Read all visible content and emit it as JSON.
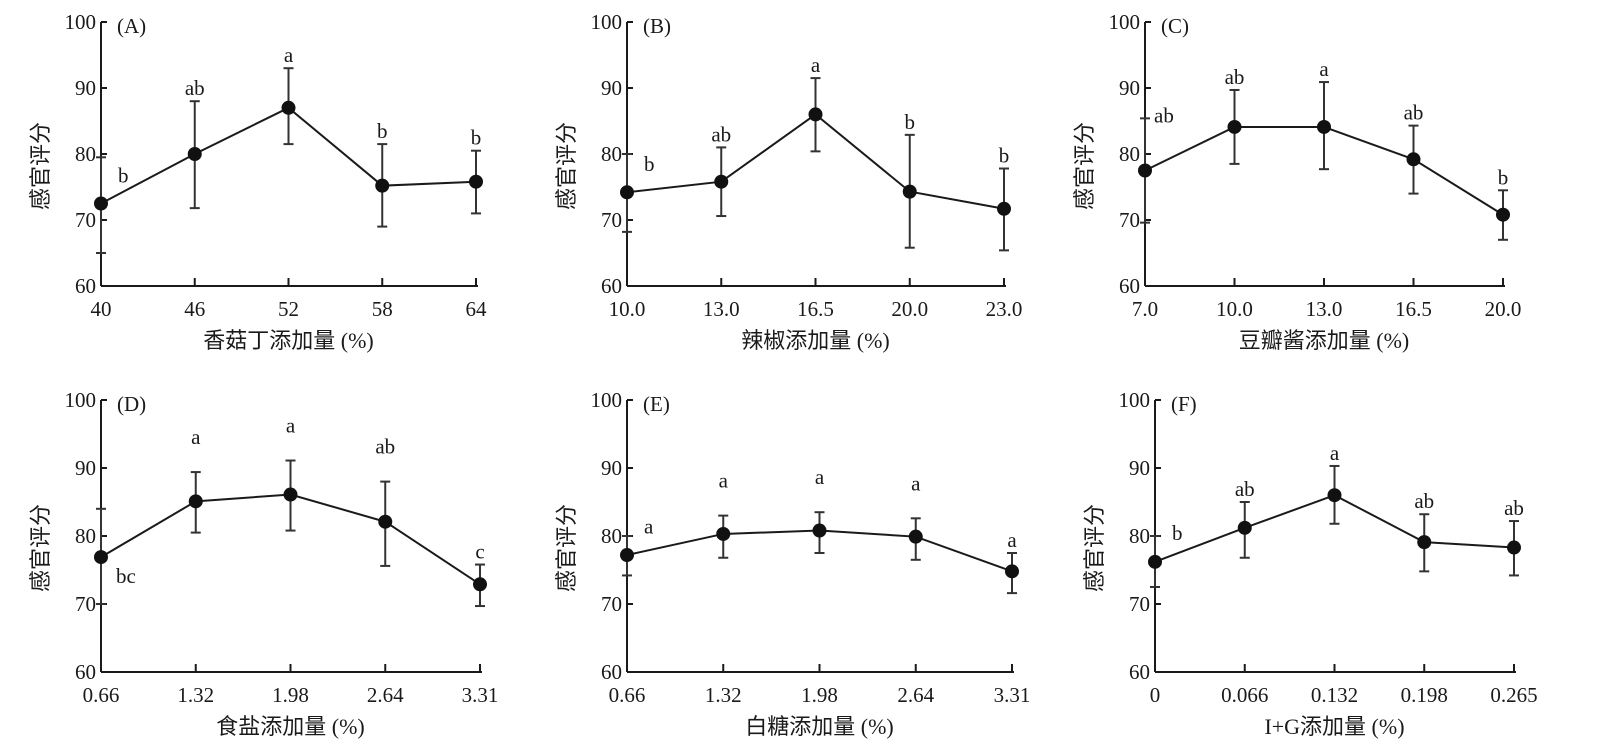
{
  "chart_data": [
    {
      "type": "line",
      "panel": "(A)",
      "xlabel": "香菇丁添加量 (%)",
      "ylabel": "感官评分",
      "categories": [
        "40",
        "46",
        "52",
        "58",
        "64"
      ],
      "yticks": [
        "60",
        "70",
        "80",
        "90",
        "100"
      ],
      "ylim": [
        60,
        100
      ],
      "values": [
        72.5,
        80.0,
        87.0,
        75.2,
        75.8
      ],
      "err_upper": [
        79.5,
        88.0,
        93.0,
        81.5,
        80.5
      ],
      "err_lower": [
        65.0,
        71.8,
        81.5,
        69.0,
        71.0
      ],
      "sig": [
        "b",
        "ab",
        "a",
        "b",
        "b"
      ]
    },
    {
      "type": "line",
      "panel": "(B)",
      "xlabel": "辣椒添加量 (%)",
      "ylabel": "感官评分",
      "categories": [
        "10.0",
        "13.0",
        "16.5",
        "20.0",
        "23.0"
      ],
      "yticks": [
        "60",
        "70",
        "80",
        "90",
        "100"
      ],
      "ylim": [
        60,
        100
      ],
      "values": [
        74.2,
        75.8,
        86.0,
        74.3,
        71.7
      ],
      "err_upper": [
        80.0,
        81.0,
        91.5,
        82.9,
        77.8
      ],
      "err_lower": [
        68.2,
        70.6,
        80.4,
        65.8,
        65.4
      ],
      "sig": [
        "b",
        "ab",
        "a",
        "b",
        "b"
      ]
    },
    {
      "type": "line",
      "panel": "(C)",
      "xlabel": "豆瓣酱添加量 (%)",
      "ylabel": "感官评分",
      "categories": [
        "7.0",
        "10.0",
        "13.0",
        "16.5",
        "20.0"
      ],
      "yticks": [
        "60",
        "70",
        "80",
        "90",
        "100"
      ],
      "ylim": [
        60,
        100
      ],
      "values": [
        77.5,
        84.1,
        84.1,
        79.2,
        70.8
      ],
      "err_upper": [
        85.4,
        89.7,
        90.9,
        84.3,
        74.5
      ],
      "err_lower": [
        69.6,
        78.5,
        77.7,
        74.0,
        67.0
      ],
      "sig": [
        "ab",
        "ab",
        "a",
        "ab",
        "b"
      ]
    },
    {
      "type": "line",
      "panel": "(D)",
      "xlabel": "食盐添加量 (%)",
      "ylabel": "感官评分",
      "categories": [
        "0.66",
        "1.32",
        "1.98",
        "2.64",
        "3.31"
      ],
      "yticks": [
        "60",
        "70",
        "80",
        "90",
        "100"
      ],
      "ylim": [
        60,
        100
      ],
      "values": [
        76.9,
        85.1,
        86.1,
        82.1,
        72.9
      ],
      "err_upper": [
        84.0,
        89.4,
        91.1,
        88.0,
        75.8
      ],
      "err_lower": [
        70.0,
        80.5,
        80.8,
        75.6,
        69.7
      ],
      "sig": [
        "bc",
        "a",
        "a",
        "ab",
        "c"
      ]
    },
    {
      "type": "line",
      "panel": "(E)",
      "xlabel": "白糖添加量 (%)",
      "ylabel": "感官评分",
      "categories": [
        "0.66",
        "1.32",
        "1.98",
        "2.64",
        "3.31"
      ],
      "yticks": [
        "60",
        "70",
        "80",
        "90",
        "100"
      ],
      "ylim": [
        60,
        100
      ],
      "values": [
        77.2,
        80.3,
        80.8,
        79.9,
        74.8
      ],
      "err_upper": [
        80.0,
        83.0,
        83.5,
        82.6,
        77.5
      ],
      "err_lower": [
        74.2,
        76.8,
        77.5,
        76.5,
        71.6
      ],
      "sig": [
        "a",
        "a",
        "a",
        "a",
        "a"
      ]
    },
    {
      "type": "line",
      "panel": "(F)",
      "xlabel": "I+G添加量 (%)",
      "ylabel": "感官评分",
      "categories": [
        "0",
        "0.066",
        "0.132",
        "0.198",
        "0.265"
      ],
      "yticks": [
        "60",
        "70",
        "80",
        "90",
        "100"
      ],
      "ylim": [
        60,
        100
      ],
      "values": [
        76.2,
        81.2,
        86.0,
        79.1,
        78.3
      ],
      "err_upper": [
        80.0,
        85.0,
        90.3,
        83.2,
        82.2
      ],
      "err_lower": [
        72.5,
        76.8,
        81.8,
        74.8,
        74.2
      ],
      "sig": [
        "b",
        "ab",
        "a",
        "ab",
        "ab"
      ]
    }
  ]
}
